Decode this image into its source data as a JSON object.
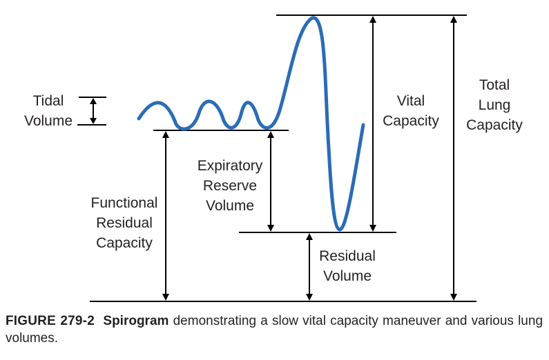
{
  "diagram": {
    "labels": {
      "tidal_1": "Tidal",
      "tidal_2": "Volume",
      "frc_1": "Functional",
      "frc_2": "Residual",
      "frc_3": "Capacity",
      "erv_1": "Expiratory",
      "erv_2": "Reserve",
      "erv_3": "Volume",
      "vc_1": "Vital",
      "vc_2": "Capacity",
      "tlc_1": "Total",
      "tlc_2": "Lung",
      "tlc_3": "Capacity",
      "rv_1": "Residual",
      "rv_2": "Volume"
    },
    "trace_color": "#2a6cb6"
  },
  "caption": {
    "figure_label": "FIGURE 279-2",
    "title": "Spirogram",
    "text": " demonstrating a slow vital capacity maneuver and various lung volumes."
  }
}
